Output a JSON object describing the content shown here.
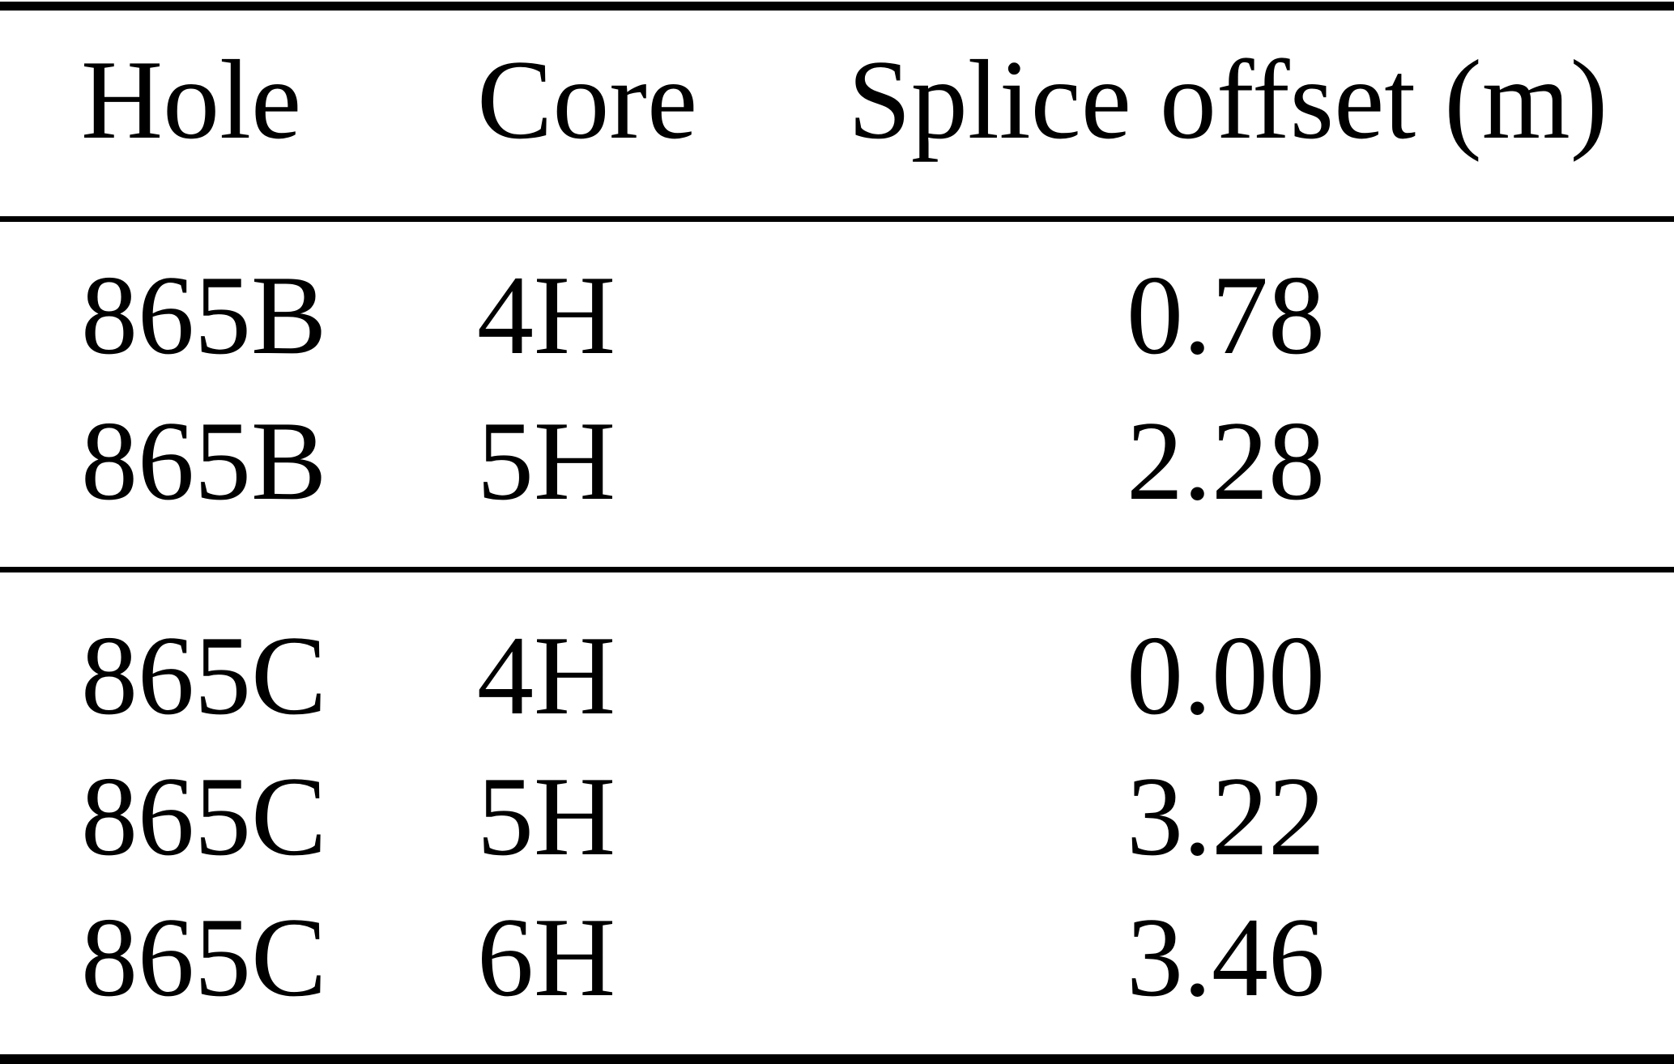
{
  "table": {
    "headers": {
      "hole": "Hole",
      "core": "Core",
      "splice_offset": "Splice offset (m)"
    },
    "groups": [
      {
        "rows": [
          {
            "hole": "865B",
            "core": "4H",
            "offset": "0.78"
          },
          {
            "hole": "865B",
            "core": "5H",
            "offset": "2.28"
          }
        ]
      },
      {
        "rows": [
          {
            "hole": "865C",
            "core": "4H",
            "offset": "0.00"
          },
          {
            "hole": "865C",
            "core": "5H",
            "offset": "3.22"
          },
          {
            "hole": "865C",
            "core": "6H",
            "offset": "3.46"
          }
        ]
      }
    ]
  },
  "colors": {
    "text": "#000000",
    "background": "#ffffff",
    "rule": "#000000"
  }
}
